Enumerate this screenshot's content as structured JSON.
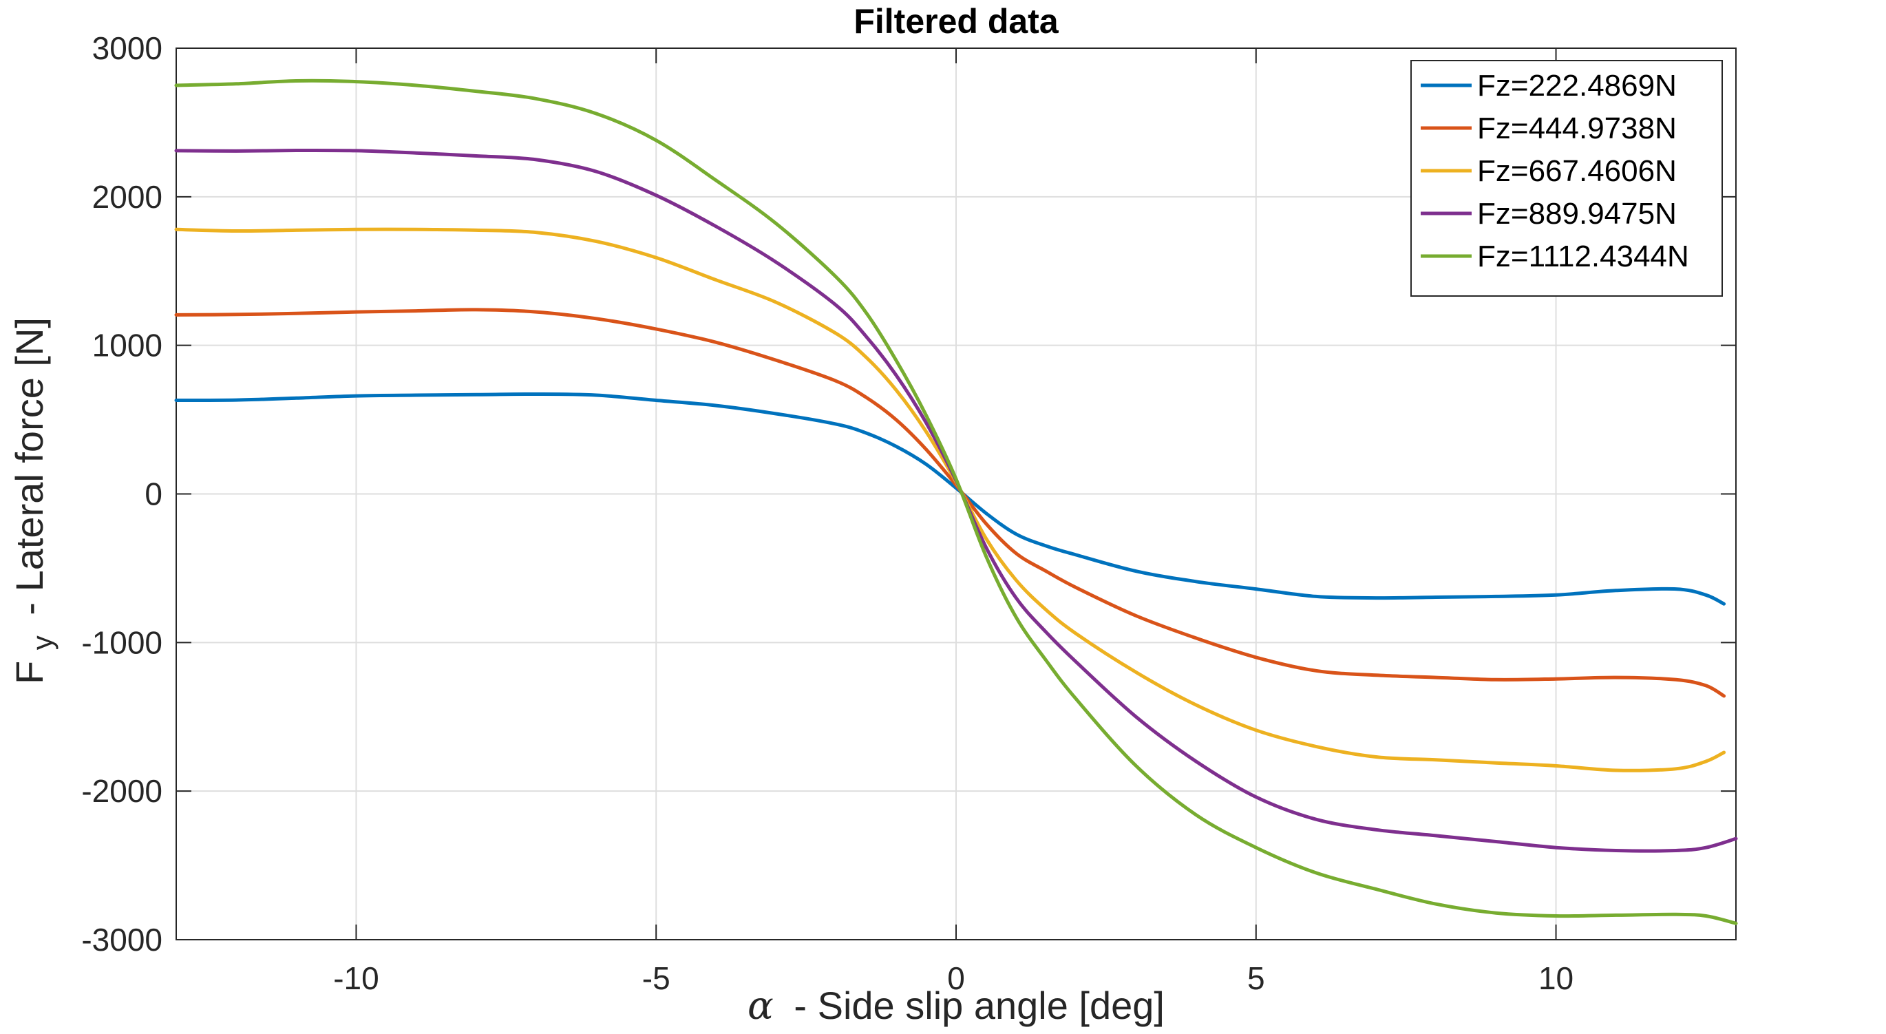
{
  "chart_data": {
    "type": "line",
    "title": "Filtered data",
    "xlabel_symbol": "α",
    "xlabel": "- Side slip angle [deg]",
    "ylabel_main": "F",
    "ylabel_sub": "y",
    "ylabel_rest": "- Lateral force [N]",
    "xlim": [
      -13,
      13
    ],
    "ylim": [
      -3000,
      3000
    ],
    "xticks": [
      -10,
      -5,
      0,
      5,
      10
    ],
    "yticks": [
      -3000,
      -2000,
      -1000,
      0,
      1000,
      2000,
      3000
    ],
    "xtick_labels": [
      "-10",
      "-5",
      "0",
      "5",
      "10"
    ],
    "ytick_labels": [
      "-3000",
      "-2000",
      "-1000",
      "0",
      "1000",
      "2000",
      "3000"
    ],
    "grid": true,
    "legend_position": "top-right",
    "series": [
      {
        "name": "Fz=222.4869N",
        "color": "#0072BD",
        "x": [
          -13,
          -12,
          -11,
          -10,
          -9,
          -8,
          -7,
          -6,
          -5,
          -4,
          -3,
          -2,
          -1.5,
          -1,
          -0.5,
          0,
          0.5,
          1,
          1.5,
          2,
          3,
          4,
          5,
          6,
          7,
          8,
          9,
          10,
          11,
          12,
          12.5,
          12.8
        ],
        "y": [
          630,
          632,
          645,
          660,
          665,
          668,
          672,
          665,
          630,
          595,
          540,
          470,
          410,
          320,
          200,
          40,
          -130,
          -270,
          -350,
          -410,
          -520,
          -590,
          -640,
          -690,
          -700,
          -695,
          -690,
          -680,
          -650,
          -640,
          -680,
          -740
        ]
      },
      {
        "name": "Fz=444.9738N",
        "color": "#D95319",
        "x": [
          -13,
          -12,
          -11,
          -10,
          -9,
          -8,
          -7,
          -6,
          -5,
          -4,
          -3,
          -2,
          -1.5,
          -1,
          -0.5,
          0,
          0.5,
          1,
          1.5,
          2,
          3,
          4,
          5,
          6,
          7,
          8,
          9,
          10,
          11,
          12,
          12.5,
          12.8
        ],
        "y": [
          1205,
          1208,
          1215,
          1225,
          1232,
          1240,
          1225,
          1180,
          1110,
          1020,
          900,
          760,
          650,
          500,
          300,
          60,
          -200,
          -400,
          -520,
          -630,
          -820,
          -970,
          -1100,
          -1190,
          -1220,
          -1235,
          -1250,
          -1245,
          -1235,
          -1250,
          -1290,
          -1360
        ]
      },
      {
        "name": "Fz=667.4606N",
        "color": "#EDB120",
        "x": [
          -13,
          -12,
          -11,
          -10,
          -9,
          -8,
          -7,
          -6,
          -5,
          -4,
          -3,
          -2,
          -1.5,
          -1,
          -0.5,
          0,
          0.5,
          1,
          1.5,
          2,
          3,
          4,
          5,
          6,
          7,
          8,
          9,
          10,
          11,
          12,
          12.5,
          12.8
        ],
        "y": [
          1780,
          1770,
          1775,
          1780,
          1780,
          1775,
          1760,
          1700,
          1590,
          1440,
          1290,
          1080,
          920,
          700,
          420,
          80,
          -300,
          -580,
          -780,
          -940,
          -1200,
          -1420,
          -1590,
          -1700,
          -1770,
          -1790,
          -1810,
          -1830,
          -1860,
          -1850,
          -1800,
          -1740
        ]
      },
      {
        "name": "Fz=889.9475N",
        "color": "#7E2F8E",
        "x": [
          -13,
          -12,
          -11,
          -10,
          -9,
          -8,
          -7,
          -6,
          -5,
          -4,
          -3,
          -2,
          -1.5,
          -1,
          -0.5,
          0,
          0.5,
          1,
          1.5,
          2,
          3,
          4,
          5,
          6,
          7,
          8,
          9,
          10,
          11,
          12,
          12.5,
          13
        ],
        "y": [
          2310,
          2308,
          2312,
          2310,
          2295,
          2275,
          2250,
          2170,
          2010,
          1800,
          1560,
          1270,
          1060,
          800,
          480,
          90,
          -360,
          -700,
          -930,
          -1130,
          -1500,
          -1800,
          -2040,
          -2190,
          -2260,
          -2300,
          -2340,
          -2380,
          -2400,
          -2400,
          -2380,
          -2320
        ]
      },
      {
        "name": "Fz=1112.4344N",
        "color": "#77AC30",
        "x": [
          -13,
          -12,
          -11,
          -10,
          -9,
          -8,
          -7,
          -6,
          -5,
          -4,
          -3,
          -2,
          -1.5,
          -1,
          -0.5,
          0,
          0.5,
          1,
          1.5,
          2,
          3,
          4,
          5,
          6,
          7,
          8,
          9,
          10,
          11,
          12,
          12.5,
          13
        ],
        "y": [
          2750,
          2760,
          2780,
          2775,
          2750,
          2710,
          2660,
          2560,
          2380,
          2110,
          1820,
          1460,
          1220,
          900,
          530,
          100,
          -420,
          -830,
          -1120,
          -1380,
          -1830,
          -2160,
          -2380,
          -2550,
          -2660,
          -2760,
          -2820,
          -2840,
          -2835,
          -2830,
          -2840,
          -2890
        ]
      }
    ]
  }
}
